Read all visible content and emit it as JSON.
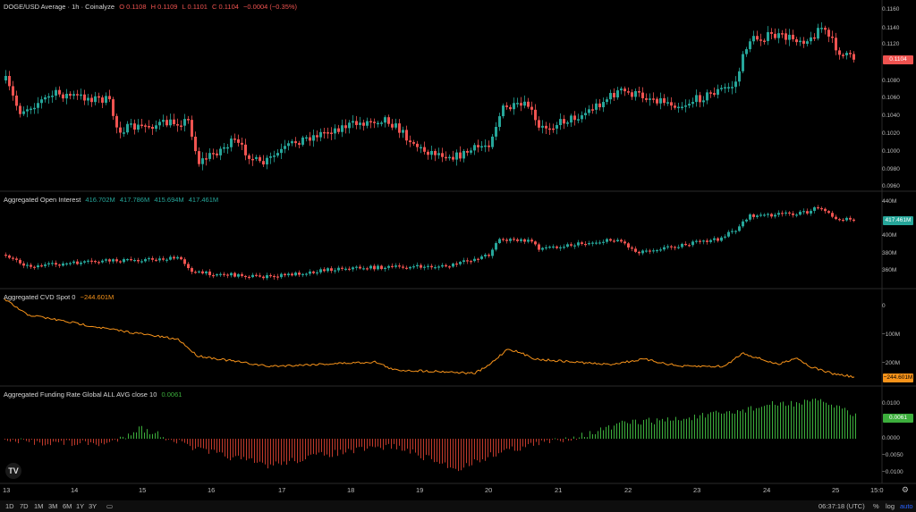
{
  "panes": {
    "price": {
      "legend_title": "DOGE/USD Average · 1h · Coinalyze",
      "ohlc": [
        "O 0.1108",
        "H 0.1109",
        "L 0.1101",
        "C 0.1104",
        "−0.0004 (−0.35%)"
      ],
      "ticks": [
        "0.1160",
        "0.1140",
        "0.1120",
        "0.1080",
        "0.1060",
        "0.1040",
        "0.1020",
        "0.1000",
        "0.0980",
        "0.0960"
      ],
      "last_badge": "0.1104"
    },
    "oi": {
      "legend_title": "Aggregated Open Interest",
      "values": [
        "416.702M",
        "417.786M",
        "415.694M",
        "417.461M"
      ],
      "ticks": [
        "440M",
        "400M",
        "380M",
        "360M"
      ],
      "last_badge": "417.461M"
    },
    "cvd": {
      "legend_title": "Aggregated CVD Spot 0",
      "value": "−244.601M",
      "ticks": [
        "0",
        "−100M",
        "−200M"
      ],
      "last_badge": "−244.601M"
    },
    "funding": {
      "legend_title": "Aggregated Funding Rate Global ALL AVG close 10",
      "value": "0.0061",
      "ticks": [
        "0.0100",
        "0.0000",
        "−0.0050",
        "−0.0100"
      ],
      "last_badge": "0.0061"
    }
  },
  "x_axis": [
    "13",
    "14",
    "15",
    "16",
    "17",
    "18",
    "19",
    "20",
    "21",
    "22",
    "23",
    "24",
    "25",
    "15:0"
  ],
  "timeframes": [
    "1D",
    "7D",
    "1M",
    "3M",
    "6M",
    "1Y",
    "3Y"
  ],
  "footer": {
    "clock": "06:37:18 (UTC)",
    "percent": "%",
    "log": "log",
    "auto": "auto"
  },
  "logo_text": "TV",
  "colors": {
    "up": "#26a69a",
    "down": "#ef5350",
    "cvd": "#f7931a",
    "funding_up": "#3cae3c",
    "funding_down": "#c0392b",
    "auto": "#2962ff"
  }
}
